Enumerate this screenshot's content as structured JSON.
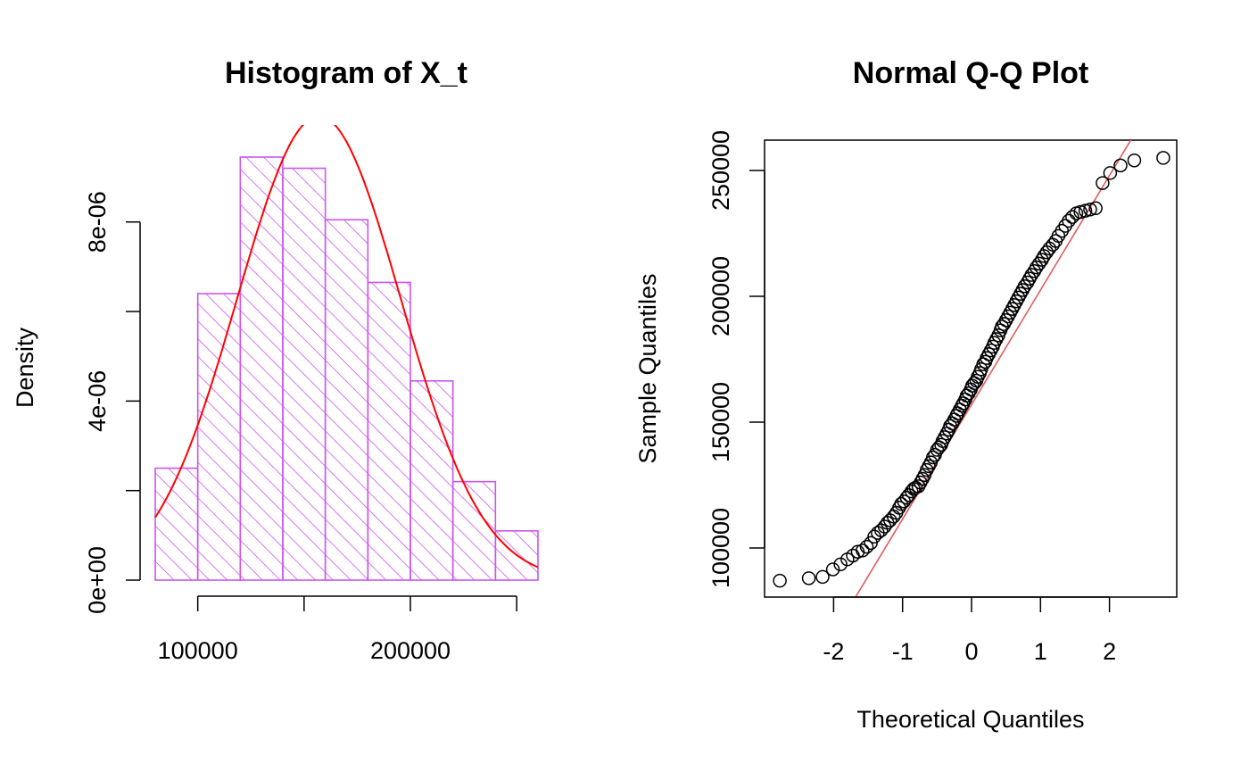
{
  "colors": {
    "hist_bar": "#cc55ee",
    "normal_curve": "#ff0000",
    "qq_line": "#e35a5a",
    "points": "#000000",
    "axis": "#000000"
  },
  "chart_data": [
    {
      "type": "bar",
      "title": "Histogram of X_t",
      "xlabel": "",
      "ylabel": "Density",
      "bin_edges": [
        80000,
        100000,
        120000,
        140000,
        160000,
        180000,
        200000,
        220000,
        240000,
        260000
      ],
      "values": [
        2.5e-06,
        6.4e-06,
        9.45e-06,
        9.2e-06,
        8.05e-06,
        6.65e-06,
        4.45e-06,
        2.2e-06,
        1.1e-06
      ],
      "xlim": [
        80000,
        260000
      ],
      "ylim": [
        0,
        9.45e-06
      ],
      "x_ticks": [
        100000,
        150000,
        200000,
        250000
      ],
      "x_tick_labels": [
        "100000",
        "",
        "200000",
        ""
      ],
      "y_ticks": [
        0,
        2e-06,
        4e-06,
        6e-06,
        8e-06
      ],
      "y_tick_labels": [
        "0e+00",
        "",
        "4e-06",
        "",
        "8e-06"
      ],
      "bar_fill": "diagonal hatching",
      "overlay": {
        "type": "normal-density-curve",
        "mean": 157000,
        "sd": 38500
      }
    },
    {
      "type": "scatter",
      "title": "Normal Q-Q Plot",
      "xlabel": "Theoretical Quantiles",
      "ylabel": "Sample Quantiles",
      "xlim": [
        -3,
        3
      ],
      "ylim": [
        80000,
        260000
      ],
      "x_ticks": [
        -2,
        -1,
        0,
        1,
        2
      ],
      "x_tick_labels": [
        "-2",
        "-1",
        "0",
        "1",
        "2"
      ],
      "y_ticks": [
        100000,
        150000,
        200000,
        250000
      ],
      "y_tick_labels": [
        "100000",
        "150000",
        "200000",
        "250000"
      ],
      "reference_line": {
        "intercept": 157000,
        "slope": 45500
      },
      "x": [
        -2.78,
        -2.36,
        -2.16,
        -2.01,
        -1.9,
        -1.8,
        -1.72,
        -1.65,
        -1.58,
        -1.52,
        -1.46,
        -1.41,
        -1.36,
        -1.31,
        -1.26,
        -1.22,
        -1.18,
        -1.13,
        -1.09,
        -1.05,
        -1.02,
        -0.98,
        -0.94,
        -0.91,
        -0.87,
        -0.84,
        -0.81,
        -0.77,
        -0.74,
        -0.71,
        -0.68,
        -0.65,
        -0.62,
        -0.59,
        -0.56,
        -0.53,
        -0.5,
        -0.47,
        -0.44,
        -0.42,
        -0.39,
        -0.36,
        -0.33,
        -0.31,
        -0.28,
        -0.25,
        -0.22,
        -0.2,
        -0.17,
        -0.14,
        -0.12,
        -0.09,
        -0.07,
        -0.04,
        -0.01,
        0.01,
        0.04,
        0.07,
        0.09,
        0.12,
        0.14,
        0.17,
        0.2,
        0.22,
        0.25,
        0.28,
        0.31,
        0.33,
        0.36,
        0.39,
        0.42,
        0.44,
        0.47,
        0.5,
        0.53,
        0.56,
        0.59,
        0.62,
        0.65,
        0.68,
        0.71,
        0.74,
        0.77,
        0.81,
        0.84,
        0.87,
        0.91,
        0.94,
        0.98,
        1.02,
        1.05,
        1.09,
        1.13,
        1.18,
        1.22,
        1.26,
        1.31,
        1.36,
        1.41,
        1.46,
        1.52,
        1.58,
        1.65,
        1.72,
        1.8,
        1.9,
        2.01,
        2.16,
        2.36,
        2.78
      ],
      "y": [
        87000,
        88000,
        88500,
        91500,
        93500,
        95500,
        97000,
        98500,
        99000,
        100500,
        102000,
        104500,
        106000,
        107000,
        108500,
        110000,
        111000,
        112500,
        114000,
        116000,
        117500,
        118500,
        120000,
        121000,
        122500,
        123500,
        124000,
        124500,
        126000,
        127500,
        129000,
        131000,
        132500,
        134000,
        136000,
        137000,
        139000,
        140000,
        141000,
        142500,
        144000,
        145500,
        147000,
        148500,
        149500,
        151000,
        152500,
        153500,
        155000,
        156500,
        157500,
        159000,
        160500,
        161500,
        163000,
        164500,
        165500,
        166500,
        168000,
        169500,
        171000,
        173000,
        174000,
        175500,
        177000,
        178500,
        180000,
        181500,
        183000,
        184500,
        186500,
        188000,
        189000,
        190500,
        192000,
        193500,
        195000,
        196500,
        198000,
        199500,
        201000,
        202500,
        204000,
        205500,
        207000,
        208500,
        210000,
        211500,
        213000,
        214500,
        216000,
        217500,
        219000,
        220500,
        222000,
        224000,
        226000,
        228000,
        230000,
        231500,
        233000,
        233500,
        234000,
        234500,
        235000,
        245000,
        249000,
        252000,
        254000,
        255000
      ]
    }
  ]
}
